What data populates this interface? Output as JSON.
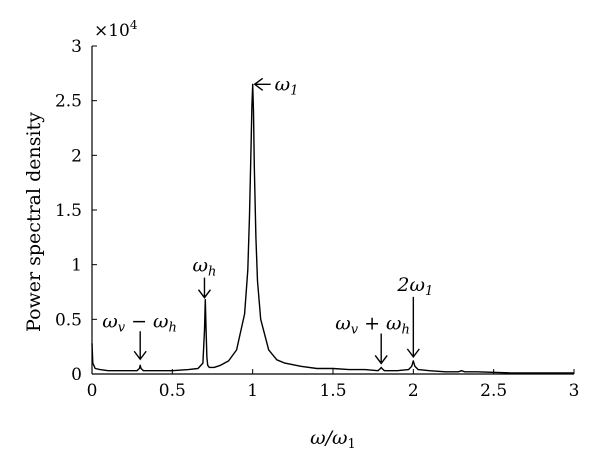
{
  "chart_data": {
    "type": "line",
    "title": "",
    "xlabel": "ω/ω₁",
    "ylabel": "Power spectral density",
    "y_exponent_label": "×10⁴",
    "xlim": [
      0,
      3
    ],
    "ylim": [
      0,
      3
    ],
    "x_ticks": [
      0,
      0.5,
      1,
      1.5,
      2,
      2.5,
      3
    ],
    "x_tick_labels": [
      "0",
      "0.5",
      "1",
      "1.5",
      "2",
      "2.5",
      "3"
    ],
    "y_ticks": [
      0,
      0.5,
      1,
      1.5,
      2,
      2.5,
      3
    ],
    "y_tick_labels": [
      "0",
      "0.5",
      "1",
      "1.5",
      "2",
      "2.5",
      "3"
    ],
    "grid": false,
    "series": [
      {
        "x": [
          0,
          0.005,
          0.02,
          0.05,
          0.1,
          0.2,
          0.28,
          0.295,
          0.3,
          0.305,
          0.32,
          0.4,
          0.5,
          0.6,
          0.66,
          0.69,
          0.7,
          0.705,
          0.71,
          0.715,
          0.72,
          0.73,
          0.76,
          0.8,
          0.85,
          0.9,
          0.95,
          0.97,
          0.98,
          0.99,
          0.995,
          1.0,
          1.005,
          1.01,
          1.02,
          1.03,
          1.05,
          1.1,
          1.15,
          1.2,
          1.3,
          1.4,
          1.5,
          1.6,
          1.7,
          1.78,
          1.795,
          1.8,
          1.805,
          1.82,
          1.9,
          1.97,
          1.99,
          2.0,
          2.01,
          2.03,
          2.1,
          2.2,
          2.28,
          2.3,
          2.32,
          2.4,
          2.6,
          2.8,
          3.0
        ],
        "y": [
          0.28,
          0.1,
          0.05,
          0.04,
          0.03,
          0.03,
          0.03,
          0.05,
          0.08,
          0.05,
          0.03,
          0.03,
          0.03,
          0.04,
          0.05,
          0.1,
          0.4,
          0.68,
          0.4,
          0.15,
          0.08,
          0.06,
          0.06,
          0.08,
          0.12,
          0.22,
          0.55,
          0.95,
          1.45,
          2.1,
          2.45,
          2.65,
          2.4,
          1.9,
          1.25,
          0.85,
          0.5,
          0.22,
          0.13,
          0.1,
          0.07,
          0.05,
          0.05,
          0.04,
          0.04,
          0.03,
          0.05,
          0.06,
          0.05,
          0.03,
          0.03,
          0.04,
          0.07,
          0.12,
          0.07,
          0.04,
          0.03,
          0.02,
          0.02,
          0.03,
          0.02,
          0.02,
          0.01,
          0.01,
          0.01
        ]
      }
    ],
    "annotations": [
      {
        "id": "w1",
        "pre": "ω",
        "sub": "1",
        "post": "",
        "x": 1.0,
        "y": 2.65
      },
      {
        "id": "wh",
        "pre": "ω",
        "sub": "h",
        "post": "",
        "x": 0.7,
        "y": 0.68
      },
      {
        "id": "vmh",
        "pre": "ω",
        "sub": "v",
        "mid": " − ω",
        "sub2": "h",
        "x": 0.3,
        "y": 0.08
      },
      {
        "id": "vph",
        "pre": "ω",
        "sub": "v",
        "mid": " + ω",
        "sub2": "h",
        "x": 1.8,
        "y": 0.06
      },
      {
        "id": "2w1",
        "pre": "2ω",
        "sub": "1",
        "post": "",
        "x": 2.0,
        "y": 0.12
      }
    ]
  }
}
